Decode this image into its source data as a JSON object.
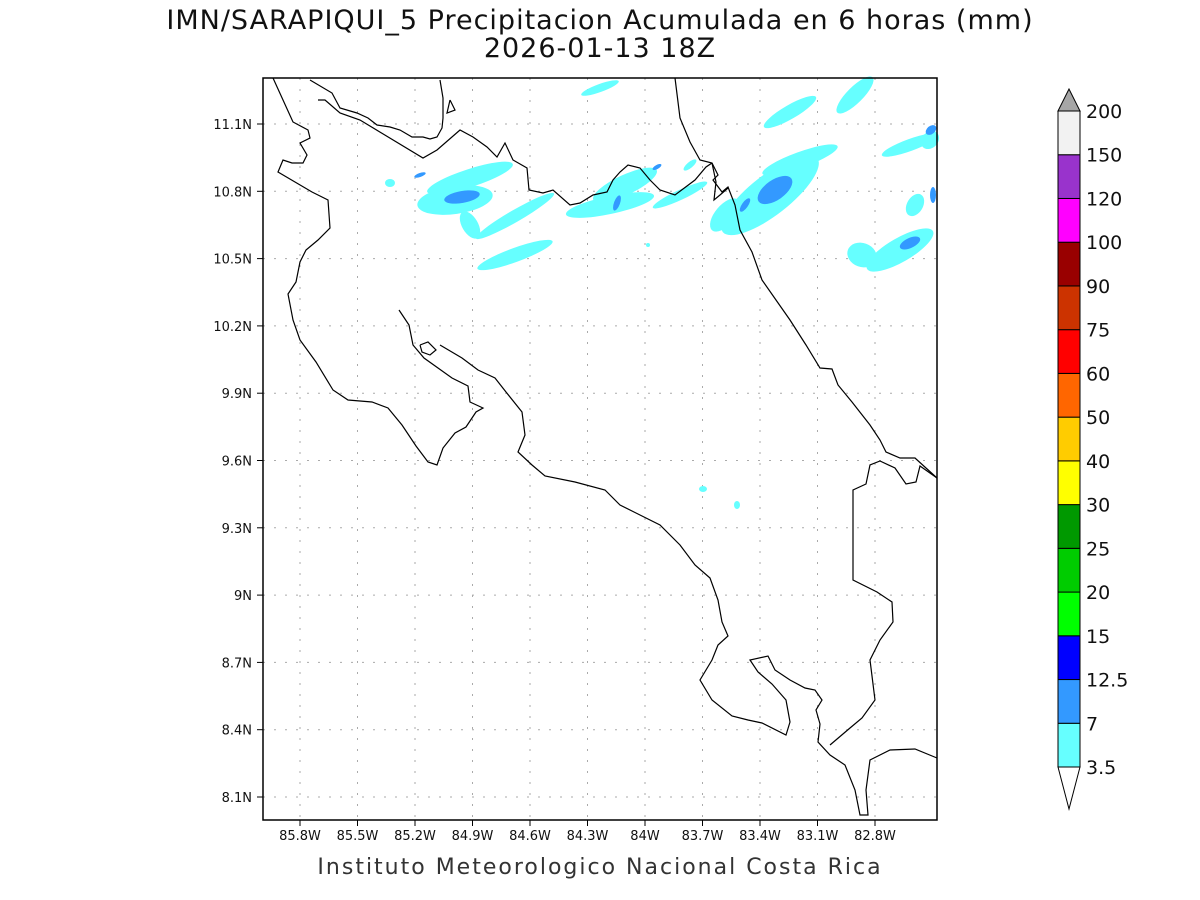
{
  "title": {
    "line1": "IMN/SARAPIQUI_5 Precipitacion Acumulada en 6 horas (mm)",
    "line2": "2026-01-13 18Z"
  },
  "footer": "Instituto Meteorologico Nacional Costa Rica",
  "map": {
    "lat_ticks": [
      "11.1N",
      "10.8N",
      "10.5N",
      "10.2N",
      "9.9N",
      "9.6N",
      "9.3N",
      "9N",
      "8.7N",
      "8.4N",
      "8.1N"
    ],
    "lon_ticks": [
      "85.8W",
      "85.5W",
      "85.2W",
      "84.9W",
      "84.6W",
      "84.3W",
      "84W",
      "83.7W",
      "83.4W",
      "83.1W",
      "82.8W"
    ],
    "precip_colors": {
      "light": "#66ffff",
      "medium": "#3399ff"
    }
  },
  "colorbar": {
    "labels": [
      "3.5",
      "7",
      "12.5",
      "15",
      "20",
      "25",
      "30",
      "40",
      "50",
      "60",
      "75",
      "90",
      "100",
      "120",
      "150",
      "200"
    ],
    "colors": [
      "#66ffff",
      "#3399ff",
      "#0000ff",
      "#00ff00",
      "#00cc00",
      "#009900",
      "#ffff00",
      "#ffcc00",
      "#ff6600",
      "#ff0000",
      "#cc3300",
      "#990000",
      "#ff00ff",
      "#9933cc",
      "#f2f2f2"
    ],
    "over_color": "#a6a6a6",
    "under_color": "#ffffff"
  }
}
